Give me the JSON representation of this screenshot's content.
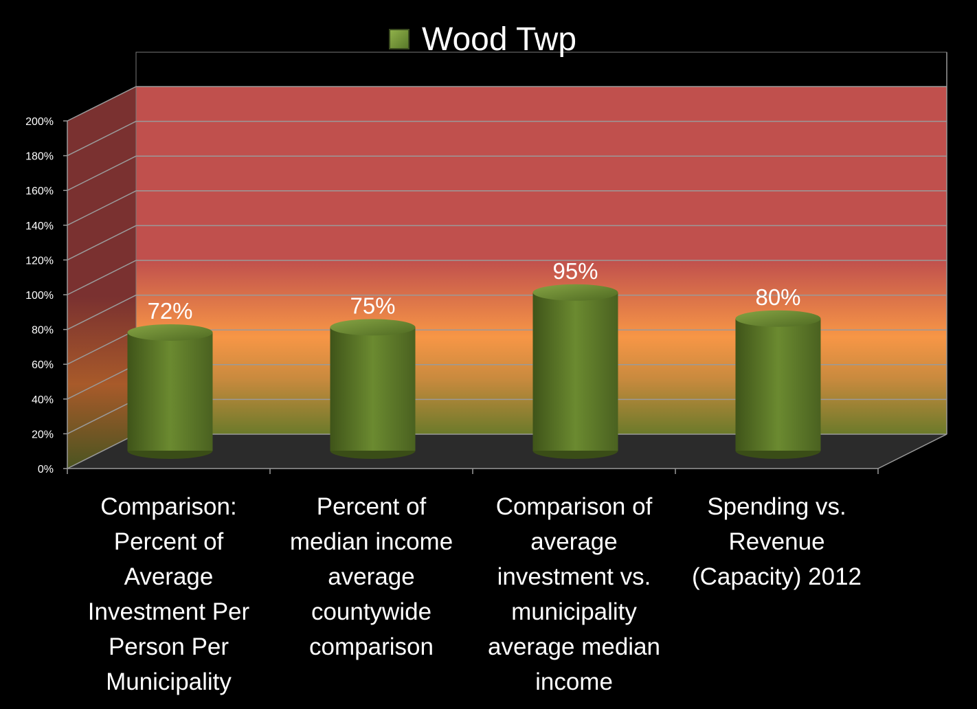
{
  "legend": {
    "label": "Wood Twp",
    "color": "#6b8a2f"
  },
  "colors": {
    "background": "#000000",
    "zone_high": "#c0504d",
    "zone_mid": "#f79646",
    "zone_low": "#6b7a2a",
    "floor": "#2b2b2b",
    "bar": "#6b8a2f"
  },
  "chart_data": {
    "type": "bar",
    "title": "",
    "xlabel": "",
    "ylabel": "",
    "ylim": [
      0,
      200
    ],
    "y_ticks": [
      "0%",
      "20%",
      "40%",
      "60%",
      "80%",
      "100%",
      "120%",
      "140%",
      "160%",
      "180%",
      "200%"
    ],
    "categories": [
      [
        "Comparison:",
        "Percent of",
        "Average",
        "Investment Per",
        "Person Per",
        "Municipality"
      ],
      [
        "Percent of",
        "median income",
        "average",
        "countywide",
        "comparison"
      ],
      [
        "Comparison of",
        "average",
        "investment vs.",
        "municipality",
        "average median",
        "income"
      ],
      [
        "Spending vs.",
        "Revenue",
        "(Capacity) 2012"
      ]
    ],
    "series": [
      {
        "name": "Wood Twp",
        "values": [
          72,
          75,
          95,
          80
        ],
        "labels": [
          "72%",
          "75%",
          "95%",
          "80%"
        ]
      }
    ],
    "grid": true,
    "legend_position": "top"
  }
}
